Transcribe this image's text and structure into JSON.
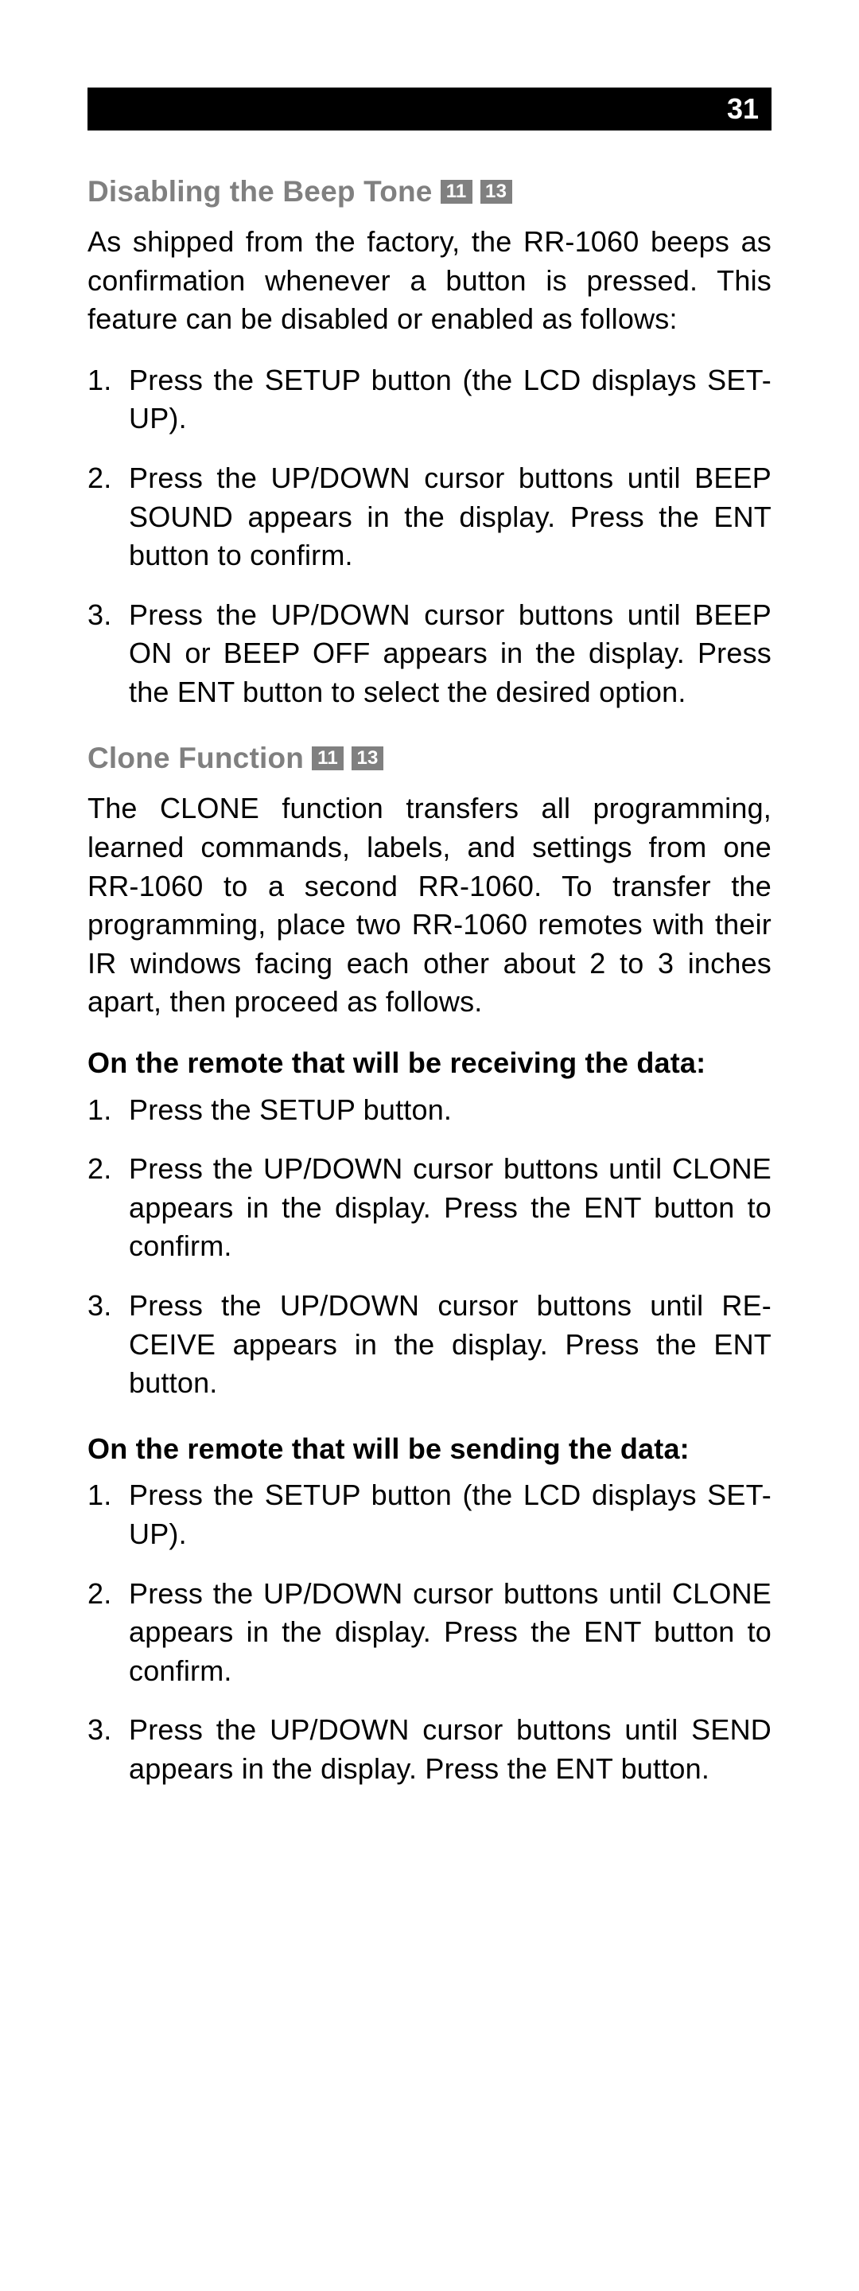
{
  "page_number": "31",
  "colors": {
    "header_bg": "#000000",
    "header_text": "#ffffff",
    "section_head": "#808080",
    "refbox_bg": "#808080",
    "refbox_text": "#ffffff",
    "body_text": "#000000",
    "page_bg": "#ffffff"
  },
  "typography": {
    "body_fontsize_pt": 27,
    "head_fontsize_pt": 28,
    "page_num_fontsize_pt": 27,
    "refbox_fontsize_pt": 18,
    "line_height": 1.35,
    "font_family": "Futura / Century Gothic style geometric sans"
  },
  "sections": [
    {
      "title": "Disabling the Beep Tone",
      "refs": [
        "11",
        "13"
      ],
      "intro": "As shipped from the factory, the RR-1060 beeps as confirmation whenever a button is pressed. This feature can be disabled or enabled as follows:",
      "steps": [
        "Press the SETUP button (the LCD displays SET-UP).",
        "Press the UP/DOWN cursor buttons until BEEP SOUND appears in the display. Press the ENT button to confirm.",
        "Press the UP/DOWN cursor buttons until BEEP ON or BEEP OFF appears in the display. Press the ENT button to select the desired option."
      ]
    },
    {
      "title": "Clone Function",
      "refs": [
        "11",
        "13"
      ],
      "intro": "The CLONE function transfers all programming, learned commands, labels, and settings from one RR-1060 to a second RR-1060. To transfer the programming, place two RR-1060 remotes with their IR windows facing each other about 2 to 3 inches apart, then proceed as follows.",
      "subsections": [
        {
          "heading": "On the remote that will be receiving the data:",
          "steps": [
            "Press the SETUP button.",
            "Press the UP/DOWN cursor buttons until CLONE appears in the display. Press the ENT button to confirm.",
            "Press the UP/DOWN cursor buttons until RE-CEIVE appears in the display. Press the ENT button."
          ]
        },
        {
          "heading": "On the remote that will be sending the data:",
          "steps": [
            "Press the SETUP button (the LCD displays SET-UP).",
            "Press the UP/DOWN cursor buttons until CLONE appears in the display. Press the ENT button to confirm.",
            "Press the UP/DOWN cursor buttons until SEND appears in the display. Press the ENT button."
          ]
        }
      ]
    }
  ]
}
